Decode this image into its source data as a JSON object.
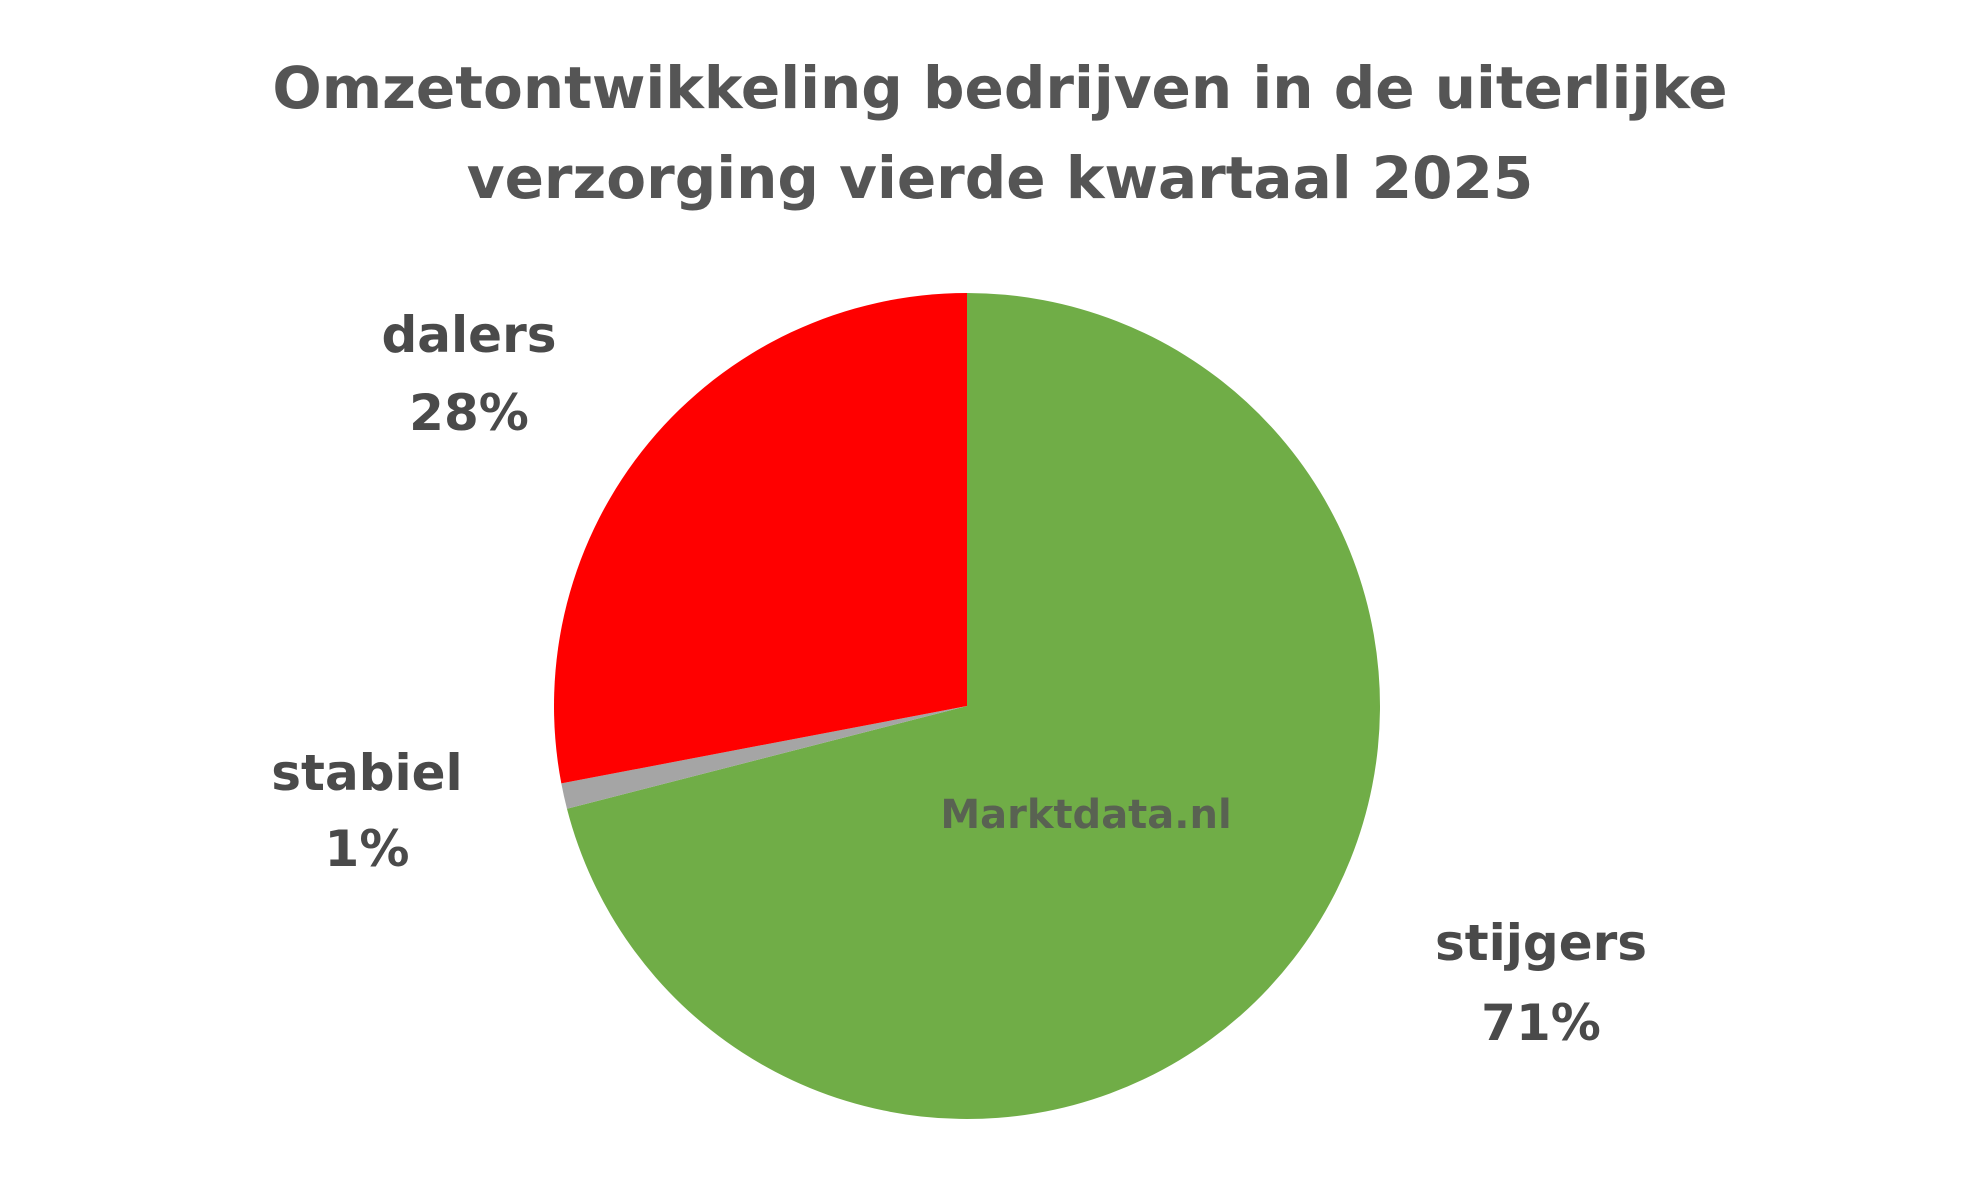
{
  "chart_data": {
    "type": "pie",
    "title": [
      "Omzetontwikkeling bedrijven in de uiterlijke",
      "verzorging vierde kwartaal 2025"
    ],
    "categories": [
      "stijgers",
      "stabiel",
      "dalers"
    ],
    "values": [
      71,
      1,
      28
    ],
    "value_labels": [
      "71%",
      "1%",
      "28%"
    ],
    "colors": [
      "#70ad47",
      "#a5a5a5",
      "#ff0000"
    ],
    "watermark": "Marktdata.nl"
  }
}
